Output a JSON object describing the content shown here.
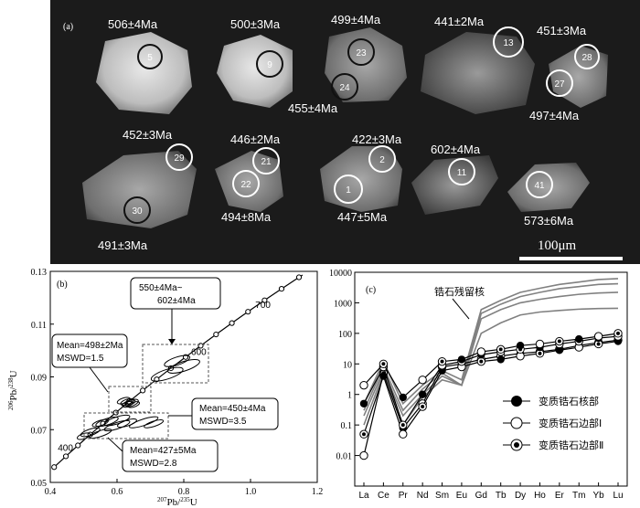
{
  "panel_a": {
    "label": "(a)",
    "scale_label": "100μm",
    "grains": [
      {
        "id": "5",
        "ages": [
          {
            "text": "506±4Ma"
          }
        ]
      },
      {
        "id": "9",
        "ages": [
          {
            "text": "500±3Ma"
          }
        ]
      },
      {
        "id": "23",
        "ages": [
          {
            "text": "499±4Ma"
          }
        ]
      },
      {
        "id": "24",
        "ages": [
          {
            "text": "455±4Ma"
          }
        ]
      },
      {
        "id": "13",
        "ages": [
          {
            "text": "441±2Ma"
          }
        ]
      },
      {
        "id": "28",
        "ages": [
          {
            "text": "451±3Ma"
          }
        ]
      },
      {
        "id": "27",
        "ages": [
          {
            "text": "497±4Ma"
          }
        ]
      },
      {
        "id": "29",
        "ages": [
          {
            "text": "452±3Ma"
          }
        ]
      },
      {
        "id": "30",
        "ages": [
          {
            "text": "491±3Ma"
          }
        ]
      },
      {
        "id": "21",
        "ages": [
          {
            "text": "446±2Ma"
          }
        ]
      },
      {
        "id": "22",
        "ages": [
          {
            "text": "494±8Ma"
          }
        ]
      },
      {
        "id": "2",
        "ages": [
          {
            "text": "422±3Ma"
          }
        ]
      },
      {
        "id": "1",
        "ages": [
          {
            "text": "447±5Ma"
          }
        ]
      },
      {
        "id": "11",
        "ages": [
          {
            "text": "602±4Ma"
          }
        ]
      },
      {
        "id": "41",
        "ages": [
          {
            "text": "573±6Ma"
          }
        ]
      }
    ]
  },
  "chart_data": [
    {
      "type": "scatter",
      "label": "(b)",
      "xlabel_sup": "207",
      "xlabel_main": "Pb/",
      "xlabel_sup2": "235",
      "xlabel_end": "U",
      "ylabel_sup": "206",
      "ylabel_main": "Pb/",
      "ylabel_sup2": "238",
      "ylabel_end": "U",
      "xlim": [
        0.4,
        1.2
      ],
      "ylim": [
        0.05,
        0.13
      ],
      "xticks": [
        "0.4",
        "0.6",
        "0.8",
        "1.0",
        "1.2"
      ],
      "yticks": [
        "0.05",
        "0.07",
        "0.09",
        "0.11",
        "0.13"
      ],
      "concordia_labels": [
        "400",
        "600",
        "700"
      ],
      "annotations": [
        {
          "line1": "550±4Ma~",
          "line2": "602±4Ma"
        },
        {
          "line1": "Mean=498±2Ma",
          "line2": "MSWD=1.5"
        },
        {
          "line1": "Mean=450±4Ma",
          "line2": "MSWD=3.5"
        },
        {
          "line1": "Mean=427±5Ma",
          "line2": "MSWD=2.8"
        }
      ]
    },
    {
      "type": "line",
      "label": "(c)",
      "yscale": "log",
      "ylim": [
        0.001,
        10000
      ],
      "yticks": [
        "0.01",
        "0.1",
        "1",
        "10",
        "100",
        "1000",
        "10000"
      ],
      "categories": [
        "La",
        "Ce",
        "Pr",
        "Nd",
        "Sm",
        "Eu",
        "Gd",
        "Tb",
        "Dy",
        "Ho",
        "Er",
        "Tm",
        "Yb",
        "Lu"
      ],
      "annotation": "锆石残留核",
      "legend": [
        "变质锆石核部",
        "变质锆石边部Ⅰ",
        "变质锆石边部Ⅱ"
      ],
      "series": [
        {
          "values": [
            0.5,
            12,
            0.5,
            2,
            6,
            3,
            600,
            1200,
            2200,
            3000,
            4000,
            4800,
            5800,
            6200
          ]
        },
        {
          "values": [
            0.3,
            8,
            0.3,
            1.5,
            5,
            2,
            450,
            900,
            1600,
            2200,
            2900,
            3400,
            4000,
            4200
          ]
        },
        {
          "values": [
            0.2,
            6,
            0.2,
            1,
            4,
            2,
            300,
            600,
            1000,
            1300,
            1600,
            1900,
            2100,
            2200
          ]
        },
        {
          "values": [
            0.1,
            5,
            0.1,
            0.8,
            3,
            2,
            100,
            220,
            400,
            500,
            560,
            620,
            650,
            660
          ]
        },
        {
          "values": [
            0.01,
            5,
            0.08,
            0.5,
            8,
            10,
            14,
            18,
            22,
            25,
            30,
            40,
            50,
            60
          ]
        },
        {
          "values": [
            0.05,
            4,
            0.05,
            0.4,
            6,
            8,
            12,
            14,
            18,
            22,
            28,
            35,
            45,
            55
          ]
        },
        {
          "values": [
            0.5,
            8,
            0.1,
            1,
            9,
            12,
            20,
            25,
            30,
            35,
            45,
            55,
            70,
            80
          ]
        },
        {
          "values": [
            2,
            10,
            0.8,
            3,
            12,
            14,
            25,
            30,
            40,
            45,
            55,
            65,
            80,
            100
          ]
        }
      ]
    }
  ]
}
